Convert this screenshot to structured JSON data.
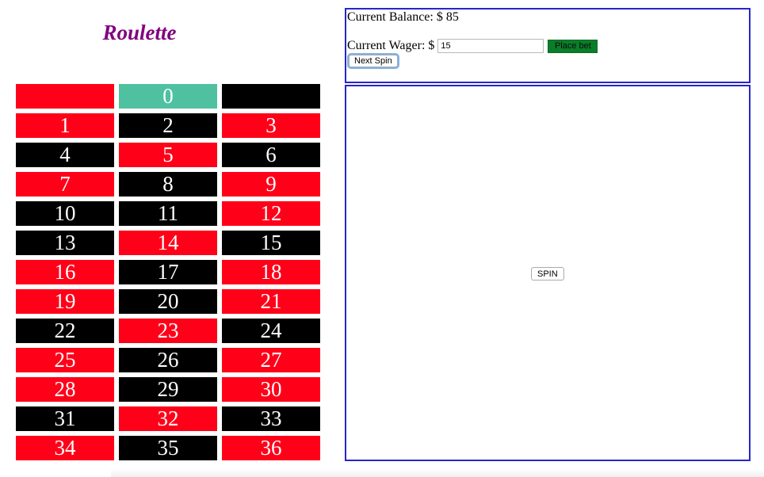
{
  "title": "Roulette",
  "colors": {
    "title": "#800080",
    "red": "#ff0019",
    "black": "#000000",
    "green": "#4fc1a1",
    "panel_border": "#2626c9",
    "place_bet_bg": "#0a7d2a"
  },
  "board": {
    "rows": [
      [
        {
          "label": "",
          "color": "red"
        },
        {
          "label": "0",
          "color": "green"
        },
        {
          "label": "",
          "color": "black"
        }
      ],
      [
        {
          "label": "1",
          "color": "red"
        },
        {
          "label": "2",
          "color": "black"
        },
        {
          "label": "3",
          "color": "red"
        }
      ],
      [
        {
          "label": "4",
          "color": "black"
        },
        {
          "label": "5",
          "color": "red"
        },
        {
          "label": "6",
          "color": "black"
        }
      ],
      [
        {
          "label": "7",
          "color": "red"
        },
        {
          "label": "8",
          "color": "black"
        },
        {
          "label": "9",
          "color": "red"
        }
      ],
      [
        {
          "label": "10",
          "color": "black"
        },
        {
          "label": "11",
          "color": "black"
        },
        {
          "label": "12",
          "color": "red"
        }
      ],
      [
        {
          "label": "13",
          "color": "black"
        },
        {
          "label": "14",
          "color": "red"
        },
        {
          "label": "15",
          "color": "black"
        }
      ],
      [
        {
          "label": "16",
          "color": "red"
        },
        {
          "label": "17",
          "color": "black"
        },
        {
          "label": "18",
          "color": "red"
        }
      ],
      [
        {
          "label": "19",
          "color": "red"
        },
        {
          "label": "20",
          "color": "black"
        },
        {
          "label": "21",
          "color": "red"
        }
      ],
      [
        {
          "label": "22",
          "color": "black"
        },
        {
          "label": "23",
          "color": "red"
        },
        {
          "label": "24",
          "color": "black"
        }
      ],
      [
        {
          "label": "25",
          "color": "red"
        },
        {
          "label": "26",
          "color": "black"
        },
        {
          "label": "27",
          "color": "red"
        }
      ],
      [
        {
          "label": "28",
          "color": "red"
        },
        {
          "label": "29",
          "color": "black"
        },
        {
          "label": "30",
          "color": "red"
        }
      ],
      [
        {
          "label": "31",
          "color": "black"
        },
        {
          "label": "32",
          "color": "red"
        },
        {
          "label": "33",
          "color": "black"
        }
      ],
      [
        {
          "label": "34",
          "color": "red"
        },
        {
          "label": "35",
          "color": "black"
        },
        {
          "label": "36",
          "color": "red"
        }
      ]
    ]
  },
  "controls": {
    "balance_label": "Current Balance: $ 85",
    "wager_label": "Current Wager: $",
    "wager_value": "15",
    "place_bet_label": "Place bet",
    "next_spin_label": "Next Spin",
    "spin_label": "SPIN"
  }
}
